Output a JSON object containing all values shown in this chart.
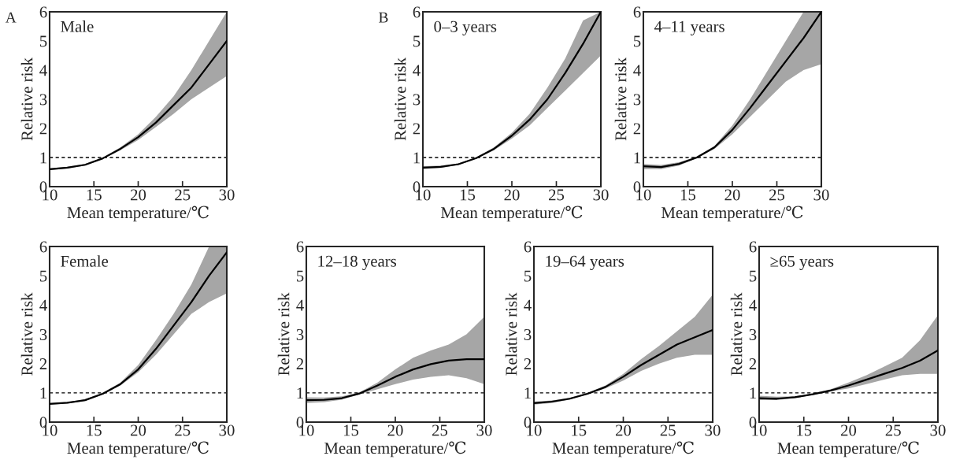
{
  "chart_data": [
    {
      "type": "line",
      "title": "Male",
      "xlabel": "Mean temperature/℃",
      "ylabel": "Relative risk",
      "annotations": [
        "A"
      ],
      "x": [
        10,
        12,
        14,
        16,
        18,
        20,
        22,
        24,
        26,
        28,
        30
      ],
      "xlim": [
        10,
        30
      ],
      "ylim": [
        0,
        6
      ],
      "xticks": [
        10,
        15,
        20,
        25,
        30
      ],
      "yticks": [
        0,
        1,
        2,
        3,
        4,
        5,
        6
      ],
      "ref_lines": [
        {
          "axis": "y",
          "value": 1,
          "line_style": "dashed",
          "color": "#000000"
        }
      ],
      "series": [
        {
          "color": "#000000",
          "values": [
            0.6,
            0.65,
            0.75,
            0.97,
            1.3,
            1.7,
            2.2,
            2.8,
            3.4,
            4.2,
            5.0
          ],
          "lower": [
            0.57,
            0.62,
            0.72,
            0.95,
            1.25,
            1.6,
            2.05,
            2.5,
            3.0,
            3.4,
            3.8
          ],
          "upper": [
            0.63,
            0.68,
            0.78,
            1.0,
            1.35,
            1.8,
            2.4,
            3.1,
            4.0,
            5.0,
            6
          ]
        }
      ]
    },
    {
      "type": "line",
      "title": "0–3 years",
      "xlabel": "Mean temperature/℃",
      "ylabel": "Relative risk",
      "annotations": [
        "B"
      ],
      "x": [
        10,
        12,
        14,
        16,
        18,
        20,
        22,
        24,
        26,
        28,
        30
      ],
      "xlim": [
        10,
        30
      ],
      "ylim": [
        0,
        6
      ],
      "xticks": [
        10,
        15,
        20,
        25,
        30
      ],
      "yticks": [
        0,
        1,
        2,
        3,
        4,
        5,
        6
      ],
      "ref_lines": [
        {
          "axis": "y",
          "value": 1,
          "line_style": "dashed",
          "color": "#000000"
        }
      ],
      "series": [
        {
          "color": "#000000",
          "values": [
            0.65,
            0.68,
            0.77,
            0.98,
            1.3,
            1.75,
            2.3,
            3.0,
            3.9,
            4.9,
            6.0
          ],
          "lower": [
            0.6,
            0.64,
            0.74,
            0.96,
            1.25,
            1.65,
            2.1,
            2.7,
            3.3,
            3.9,
            4.5
          ],
          "upper": [
            0.7,
            0.72,
            0.8,
            1.0,
            1.35,
            1.85,
            2.5,
            3.4,
            4.4,
            5.7,
            6
          ]
        }
      ]
    },
    {
      "type": "line",
      "title": "4–11 years",
      "xlabel": "Mean temperature/℃",
      "ylabel": "Relative risk",
      "x": [
        10,
        12,
        14,
        16,
        18,
        20,
        22,
        24,
        26,
        28,
        30
      ],
      "xlim": [
        10,
        30
      ],
      "ylim": [
        0,
        6
      ],
      "xticks": [
        10,
        15,
        20,
        25,
        30
      ],
      "yticks": [
        0,
        1,
        2,
        3,
        4,
        5,
        6
      ],
      "ref_lines": [
        {
          "axis": "y",
          "value": 1,
          "line_style": "dashed",
          "color": "#000000"
        }
      ],
      "series": [
        {
          "color": "#000000",
          "values": [
            0.7,
            0.67,
            0.78,
            1.0,
            1.35,
            1.95,
            2.7,
            3.5,
            4.3,
            5.1,
            6.0
          ],
          "lower": [
            0.6,
            0.6,
            0.72,
            0.97,
            1.3,
            1.8,
            2.4,
            3.0,
            3.6,
            4.0,
            4.2
          ],
          "upper": [
            0.78,
            0.74,
            0.84,
            1.03,
            1.4,
            2.1,
            3.0,
            4.0,
            5.0,
            6,
            6
          ]
        }
      ]
    },
    {
      "type": "line",
      "title": "Female",
      "xlabel": "Mean temperature/℃",
      "ylabel": "Relative risk",
      "x": [
        10,
        12,
        14,
        16,
        18,
        20,
        22,
        24,
        26,
        28,
        30
      ],
      "xlim": [
        10,
        30
      ],
      "ylim": [
        0,
        6
      ],
      "xticks": [
        10,
        15,
        20,
        25,
        30
      ],
      "yticks": [
        0,
        1,
        2,
        3,
        4,
        5,
        6
      ],
      "ref_lines": [
        {
          "axis": "y",
          "value": 1,
          "line_style": "dashed",
          "color": "#000000"
        }
      ],
      "series": [
        {
          "color": "#000000",
          "values": [
            0.62,
            0.66,
            0.75,
            0.97,
            1.3,
            1.8,
            2.5,
            3.3,
            4.1,
            5.0,
            5.8
          ],
          "lower": [
            0.6,
            0.63,
            0.72,
            0.95,
            1.25,
            1.7,
            2.3,
            3.0,
            3.7,
            4.1,
            4.4
          ],
          "upper": [
            0.65,
            0.68,
            0.78,
            1.0,
            1.35,
            1.95,
            2.8,
            3.7,
            4.7,
            6,
            6
          ]
        }
      ]
    },
    {
      "type": "line",
      "title": "12–18 years",
      "xlabel": "Mean temperature/℃",
      "ylabel": "Relative risk",
      "x": [
        10,
        12,
        14,
        16,
        18,
        20,
        22,
        24,
        26,
        28,
        30
      ],
      "xlim": [
        10,
        30
      ],
      "ylim": [
        0,
        6
      ],
      "xticks": [
        10,
        15,
        20,
        25,
        30
      ],
      "yticks": [
        0,
        1,
        2,
        3,
        4,
        5,
        6
      ],
      "ref_lines": [
        {
          "axis": "y",
          "value": 1,
          "line_style": "dashed",
          "color": "#000000"
        }
      ],
      "series": [
        {
          "color": "#000000",
          "values": [
            0.75,
            0.76,
            0.82,
            0.98,
            1.25,
            1.55,
            1.8,
            1.98,
            2.1,
            2.15,
            2.15
          ],
          "lower": [
            0.65,
            0.68,
            0.77,
            0.95,
            1.12,
            1.3,
            1.45,
            1.55,
            1.6,
            1.5,
            1.3
          ],
          "upper": [
            0.85,
            0.84,
            0.88,
            1.02,
            1.35,
            1.8,
            2.2,
            2.45,
            2.65,
            3.0,
            3.6
          ]
        }
      ]
    },
    {
      "type": "line",
      "title": "19–64 years",
      "xlabel": "Mean temperature/℃",
      "ylabel": "Relative risk",
      "x": [
        10,
        12,
        14,
        16,
        18,
        20,
        22,
        24,
        26,
        28,
        30
      ],
      "xlim": [
        10,
        30
      ],
      "ylim": [
        0,
        6
      ],
      "xticks": [
        10,
        15,
        20,
        25,
        30
      ],
      "yticks": [
        0,
        1,
        2,
        3,
        4,
        5,
        6
      ],
      "ref_lines": [
        {
          "axis": "y",
          "value": 1,
          "line_style": "dashed",
          "color": "#000000"
        }
      ],
      "series": [
        {
          "color": "#000000",
          "values": [
            0.65,
            0.7,
            0.8,
            0.97,
            1.2,
            1.55,
            1.95,
            2.3,
            2.65,
            2.9,
            3.15
          ],
          "lower": [
            0.6,
            0.65,
            0.77,
            0.95,
            1.15,
            1.42,
            1.75,
            2.0,
            2.2,
            2.3,
            2.3
          ],
          "upper": [
            0.7,
            0.74,
            0.83,
            1.0,
            1.25,
            1.65,
            2.15,
            2.6,
            3.1,
            3.6,
            4.35
          ]
        }
      ]
    },
    {
      "type": "line",
      "title": "≥65 years",
      "xlabel": "Mean temperature/℃",
      "ylabel": "Relative risk",
      "x": [
        10,
        12,
        14,
        16,
        18,
        20,
        22,
        24,
        26,
        28,
        30
      ],
      "xlim": [
        10,
        30
      ],
      "ylim": [
        0,
        6
      ],
      "xticks": [
        10,
        15,
        20,
        25,
        30
      ],
      "yticks": [
        0,
        1,
        2,
        3,
        4,
        5,
        6
      ],
      "ref_lines": [
        {
          "axis": "y",
          "value": 1,
          "line_style": "dashed",
          "color": "#000000"
        }
      ],
      "series": [
        {
          "color": "#000000",
          "values": [
            0.82,
            0.8,
            0.85,
            0.95,
            1.08,
            1.25,
            1.45,
            1.65,
            1.85,
            2.1,
            2.45
          ],
          "lower": [
            0.75,
            0.75,
            0.82,
            0.93,
            1.05,
            1.15,
            1.3,
            1.45,
            1.6,
            1.65,
            1.65
          ],
          "upper": [
            0.9,
            0.87,
            0.88,
            0.98,
            1.12,
            1.35,
            1.6,
            1.9,
            2.2,
            2.8,
            3.65
          ]
        }
      ]
    }
  ]
}
